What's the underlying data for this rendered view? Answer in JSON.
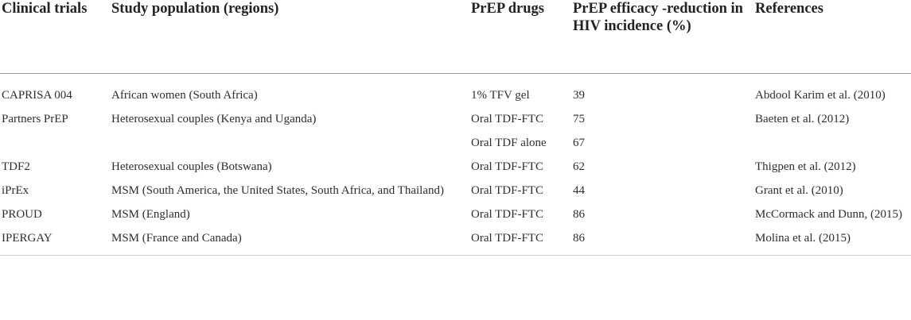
{
  "headers": {
    "clinical_trials": "Clinical trials",
    "study_population": "Study population (regions)",
    "prep_drugs": "PrEP drugs",
    "prep_efficacy": "PrEP efficacy -reduction in HIV incidence (%)",
    "references": "References"
  },
  "rows": [
    {
      "trial": "CAPRISA 004",
      "population": "African women (South Africa)",
      "drug": "1% TFV gel",
      "efficacy": "39",
      "reference": "Abdool Karim et al. (2010)"
    },
    {
      "trial": "Partners PrEP",
      "population": "Heterosexual couples (Kenya and Uganda)",
      "drug": "Oral TDF-FTC",
      "efficacy": "75",
      "reference": "Baeten et al. (2012)"
    },
    {
      "trial": "",
      "population": "",
      "drug": "Oral TDF alone",
      "efficacy": "67",
      "reference": ""
    },
    {
      "trial": "TDF2",
      "population": "Heterosexual couples (Botswana)",
      "drug": "Oral TDF-FTC",
      "efficacy": "62",
      "reference": "Thigpen et al. (2012)"
    },
    {
      "trial": "iPrEx",
      "population": "MSM (South America, the United States, South Africa, and Thailand)",
      "drug": "Oral TDF-FTC",
      "efficacy": "44",
      "reference": "Grant et al. (2010)"
    },
    {
      "trial": "PROUD",
      "population": "MSM (England)",
      "drug": "Oral TDF-FTC",
      "efficacy": "86",
      "reference": "McCormack and Dunn, (2015)"
    },
    {
      "trial": "IPERGAY",
      "population": "MSM (France and Canada)",
      "drug": "Oral TDF-FTC",
      "efficacy": "86",
      "reference": "Molina et al. (2015)"
    }
  ]
}
